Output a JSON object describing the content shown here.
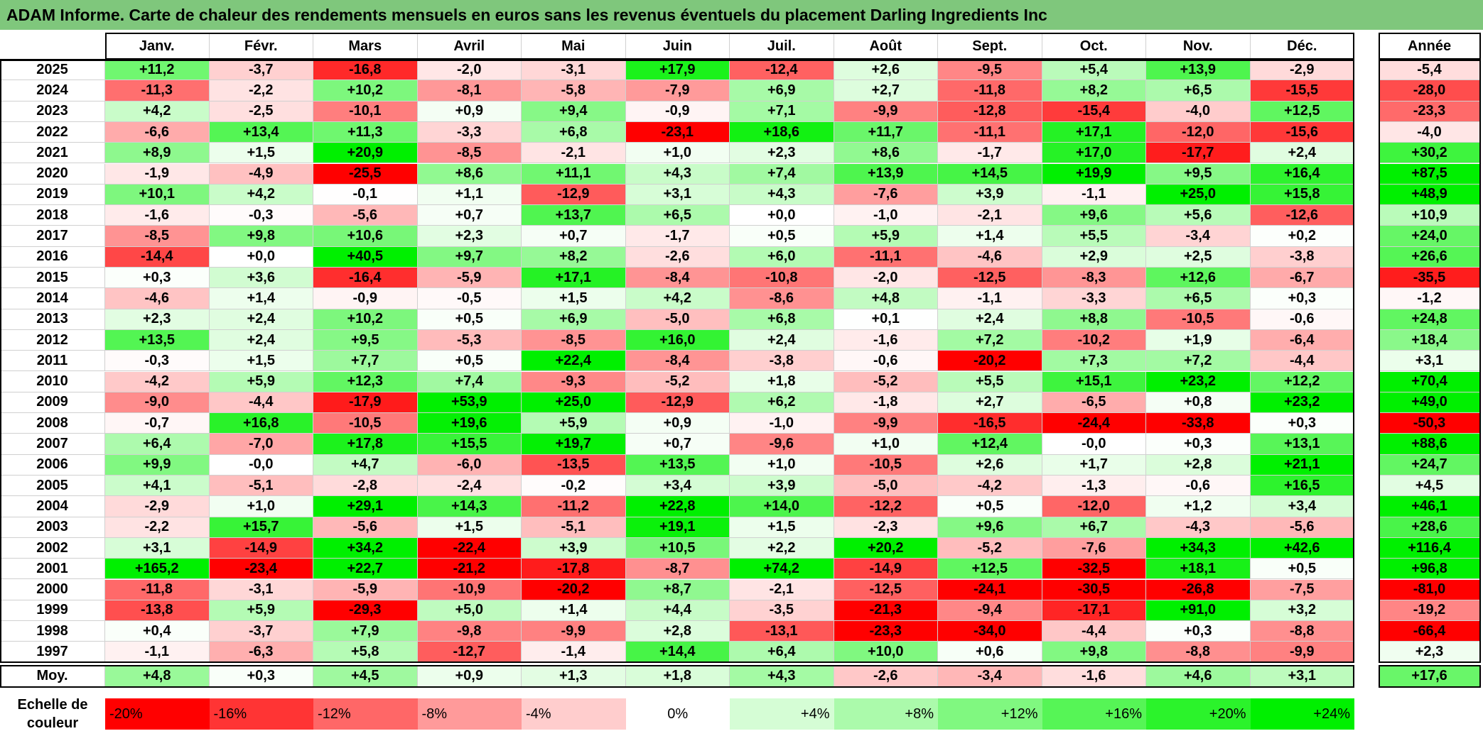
{
  "title": "ADAM Informe. Carte de chaleur des rendements mensuels en euros sans les revenus éventuels du placement Darling Ingredients Inc",
  "chart_data": {
    "type": "heatmap",
    "months": [
      "Janv.",
      "Févr.",
      "Mars",
      "Avril",
      "Mai",
      "Juin",
      "Juil.",
      "Août",
      "Sept.",
      "Oct.",
      "Nov.",
      "Déc."
    ],
    "year_column_label": "Année",
    "rows": [
      {
        "year": "2025",
        "values": [
          "+11,2",
          "-3,7",
          "-16,8",
          "-2,0",
          "-3,1",
          "+17,9",
          "-12,4",
          "+2,6",
          "-9,5",
          "+5,4",
          "+13,9",
          "-2,9"
        ],
        "annual": "-5,4"
      },
      {
        "year": "2024",
        "values": [
          "-11,3",
          "-2,2",
          "+10,2",
          "-8,1",
          "-5,8",
          "-7,9",
          "+6,9",
          "+2,7",
          "-11,8",
          "+8,2",
          "+6,5",
          "-15,5"
        ],
        "annual": "-28,0"
      },
      {
        "year": "2023",
        "values": [
          "+4,2",
          "-2,5",
          "-10,1",
          "+0,9",
          "+9,4",
          "-0,9",
          "+7,1",
          "-9,9",
          "-12,8",
          "-15,4",
          "-4,0",
          "+12,5"
        ],
        "annual": "-23,3"
      },
      {
        "year": "2022",
        "values": [
          "-6,6",
          "+13,4",
          "+11,3",
          "-3,3",
          "+6,8",
          "-23,1",
          "+18,6",
          "+11,7",
          "-11,1",
          "+17,1",
          "-12,0",
          "-15,6"
        ],
        "annual": "-4,0"
      },
      {
        "year": "2021",
        "values": [
          "+8,9",
          "+1,5",
          "+20,9",
          "-8,5",
          "-2,1",
          "+1,0",
          "+2,3",
          "+8,6",
          "-1,7",
          "+17,0",
          "-17,7",
          "+2,4"
        ],
        "annual": "+30,2"
      },
      {
        "year": "2020",
        "values": [
          "-1,9",
          "-4,9",
          "-25,5",
          "+8,6",
          "+11,1",
          "+4,3",
          "+7,4",
          "+13,9",
          "+14,5",
          "+19,9",
          "+9,5",
          "+16,4"
        ],
        "annual": "+87,5"
      },
      {
        "year": "2019",
        "values": [
          "+10,1",
          "+4,2",
          "-0,1",
          "+1,1",
          "-12,9",
          "+3,1",
          "+4,3",
          "-7,6",
          "+3,9",
          "-1,1",
          "+25,0",
          "+15,8"
        ],
        "annual": "+48,9"
      },
      {
        "year": "2018",
        "values": [
          "-1,6",
          "-0,3",
          "-5,6",
          "+0,7",
          "+13,7",
          "+6,5",
          "+0,0",
          "-1,0",
          "-2,1",
          "+9,6",
          "+5,6",
          "-12,6"
        ],
        "annual": "+10,9"
      },
      {
        "year": "2017",
        "values": [
          "-8,5",
          "+9,8",
          "+10,6",
          "+2,3",
          "+0,7",
          "-1,7",
          "+0,5",
          "+5,9",
          "+1,4",
          "+5,5",
          "-3,4",
          "+0,2"
        ],
        "annual": "+24,0"
      },
      {
        "year": "2016",
        "values": [
          "-14,4",
          "+0,0",
          "+40,5",
          "+9,7",
          "+8,2",
          "-2,6",
          "+6,0",
          "-11,1",
          "-4,6",
          "+2,9",
          "+2,5",
          "-3,8"
        ],
        "annual": "+26,6"
      },
      {
        "year": "2015",
        "values": [
          "+0,3",
          "+3,6",
          "-16,4",
          "-5,9",
          "+17,1",
          "-8,4",
          "-10,8",
          "-2,0",
          "-12,5",
          "-8,3",
          "+12,6",
          "-6,7"
        ],
        "annual": "-35,5"
      },
      {
        "year": "2014",
        "values": [
          "-4,6",
          "+1,4",
          "-0,9",
          "-0,5",
          "+1,5",
          "+4,2",
          "-8,6",
          "+4,8",
          "-1,1",
          "-3,3",
          "+6,5",
          "+0,3"
        ],
        "annual": "-1,2"
      },
      {
        "year": "2013",
        "values": [
          "+2,3",
          "+2,4",
          "+10,2",
          "+0,5",
          "+6,9",
          "-5,0",
          "+6,8",
          "+0,1",
          "+2,4",
          "+8,8",
          "-10,5",
          "-0,6"
        ],
        "annual": "+24,8"
      },
      {
        "year": "2012",
        "values": [
          "+13,5",
          "+2,4",
          "+9,5",
          "-5,3",
          "-8,5",
          "+16,0",
          "+2,4",
          "-1,6",
          "+7,2",
          "-10,2",
          "+1,9",
          "-6,4"
        ],
        "annual": "+18,4"
      },
      {
        "year": "2011",
        "values": [
          "-0,3",
          "+1,5",
          "+7,7",
          "+0,5",
          "+22,4",
          "-8,4",
          "-3,8",
          "-0,6",
          "-20,2",
          "+7,3",
          "+7,2",
          "-4,4"
        ],
        "annual": "+3,1"
      },
      {
        "year": "2010",
        "values": [
          "-4,2",
          "+5,9",
          "+12,3",
          "+7,4",
          "-9,3",
          "-5,2",
          "+1,8",
          "-5,2",
          "+5,5",
          "+15,1",
          "+23,2",
          "+12,2"
        ],
        "annual": "+70,4"
      },
      {
        "year": "2009",
        "values": [
          "-9,0",
          "-4,4",
          "-17,9",
          "+53,9",
          "+25,0",
          "-12,9",
          "+6,2",
          "-1,8",
          "+2,7",
          "-6,5",
          "+0,8",
          "+23,2"
        ],
        "annual": "+49,0"
      },
      {
        "year": "2008",
        "values": [
          "-0,7",
          "+16,8",
          "-10,5",
          "+19,6",
          "+5,9",
          "+0,9",
          "-1,0",
          "-9,9",
          "-16,5",
          "-24,4",
          "-33,8",
          "+0,3"
        ],
        "annual": "-50,3"
      },
      {
        "year": "2007",
        "values": [
          "+6,4",
          "-7,0",
          "+17,8",
          "+15,5",
          "+19,7",
          "+0,7",
          "-9,6",
          "+1,0",
          "+12,4",
          "-0,0",
          "+0,3",
          "+13,1"
        ],
        "annual": "+88,6"
      },
      {
        "year": "2006",
        "values": [
          "+9,9",
          "-0,0",
          "+4,7",
          "-6,0",
          "-13,5",
          "+13,5",
          "+1,0",
          "-10,5",
          "+2,6",
          "+1,7",
          "+2,8",
          "+21,1"
        ],
        "annual": "+24,7"
      },
      {
        "year": "2005",
        "values": [
          "+4,1",
          "-5,1",
          "-2,8",
          "-2,4",
          "-0,2",
          "+3,4",
          "+3,9",
          "-5,0",
          "-4,2",
          "-1,3",
          "-0,6",
          "+16,5"
        ],
        "annual": "+4,5"
      },
      {
        "year": "2004",
        "values": [
          "-2,9",
          "+1,0",
          "+29,1",
          "+14,3",
          "-11,2",
          "+22,8",
          "+14,0",
          "-12,2",
          "+0,5",
          "-12,0",
          "+1,2",
          "+3,4"
        ],
        "annual": "+46,1"
      },
      {
        "year": "2003",
        "values": [
          "-2,2",
          "+15,7",
          "-5,6",
          "+1,5",
          "-5,1",
          "+19,1",
          "+1,5",
          "-2,3",
          "+9,6",
          "+6,7",
          "-4,3",
          "-5,6"
        ],
        "annual": "+28,6"
      },
      {
        "year": "2002",
        "values": [
          "+3,1",
          "-14,9",
          "+34,2",
          "-22,4",
          "+3,9",
          "+10,5",
          "+2,2",
          "+20,2",
          "-5,2",
          "-7,6",
          "+34,3",
          "+42,6"
        ],
        "annual": "+116,4"
      },
      {
        "year": "2001",
        "values": [
          "+165,2",
          "-23,4",
          "+22,7",
          "-21,2",
          "-17,8",
          "-8,7",
          "+74,2",
          "-14,9",
          "+12,5",
          "-32,5",
          "+18,1",
          "+0,5"
        ],
        "annual": "+96,8"
      },
      {
        "year": "2000",
        "values": [
          "-11,8",
          "-3,1",
          "-5,9",
          "-10,9",
          "-20,2",
          "+8,7",
          "-2,1",
          "-12,5",
          "-24,1",
          "-30,5",
          "-26,8",
          "-7,5"
        ],
        "annual": "-81,0"
      },
      {
        "year": "1999",
        "values": [
          "-13,8",
          "+5,9",
          "-29,3",
          "+5,0",
          "+1,4",
          "+4,4",
          "-3,5",
          "-21,3",
          "-9,4",
          "-17,1",
          "+91,0",
          "+3,2"
        ],
        "annual": "-19,2"
      },
      {
        "year": "1998",
        "values": [
          "+0,4",
          "-3,7",
          "+7,9",
          "-9,8",
          "-9,9",
          "+2,8",
          "-13,1",
          "-23,3",
          "-34,0",
          "-4,4",
          "+0,3",
          "-8,8"
        ],
        "annual": "-66,4"
      },
      {
        "year": "1997",
        "values": [
          "-1,1",
          "-6,3",
          "+5,8",
          "-12,7",
          "-1,4",
          "+14,4",
          "+6,4",
          "+10,0",
          "+0,6",
          "+9,8",
          "-8,8",
          "-9,9"
        ],
        "annual": "+2,3"
      }
    ],
    "average": {
      "label": "Moy.",
      "values": [
        "+4,8",
        "+0,3",
        "+4,5",
        "+0,9",
        "+1,3",
        "+1,8",
        "+4,3",
        "-2,6",
        "-3,4",
        "-1,6",
        "+4,6",
        "+3,1"
      ],
      "annual": "+17,6"
    },
    "scale": {
      "label_line1": "Echelle de",
      "label_line2": "couleur",
      "steps": [
        {
          "label": "-20%",
          "color": "#ff0000"
        },
        {
          "label": "-16%",
          "color": "#ff3434"
        },
        {
          "label": "-12%",
          "color": "#ff6767"
        },
        {
          "label": "-8%",
          "color": "#ff9a9a"
        },
        {
          "label": "-4%",
          "color": "#ffcdcd"
        },
        {
          "label": "0%",
          "color": "#ffffff"
        },
        {
          "label": "+4%",
          "color": "#d5fdd5"
        },
        {
          "label": "+8%",
          "color": "#abfaab"
        },
        {
          "label": "+12%",
          "color": "#80f880"
        },
        {
          "label": "+16%",
          "color": "#56f556"
        },
        {
          "label": "+20%",
          "color": "#2bf32b"
        },
        {
          "label": "+24%",
          "color": "#00f000"
        }
      ]
    }
  },
  "colors": {
    "title_bar": "#7fc77c",
    "negative_max": "#ff0000",
    "positive_max": "#00f000",
    "neutral": "#ffffff"
  }
}
